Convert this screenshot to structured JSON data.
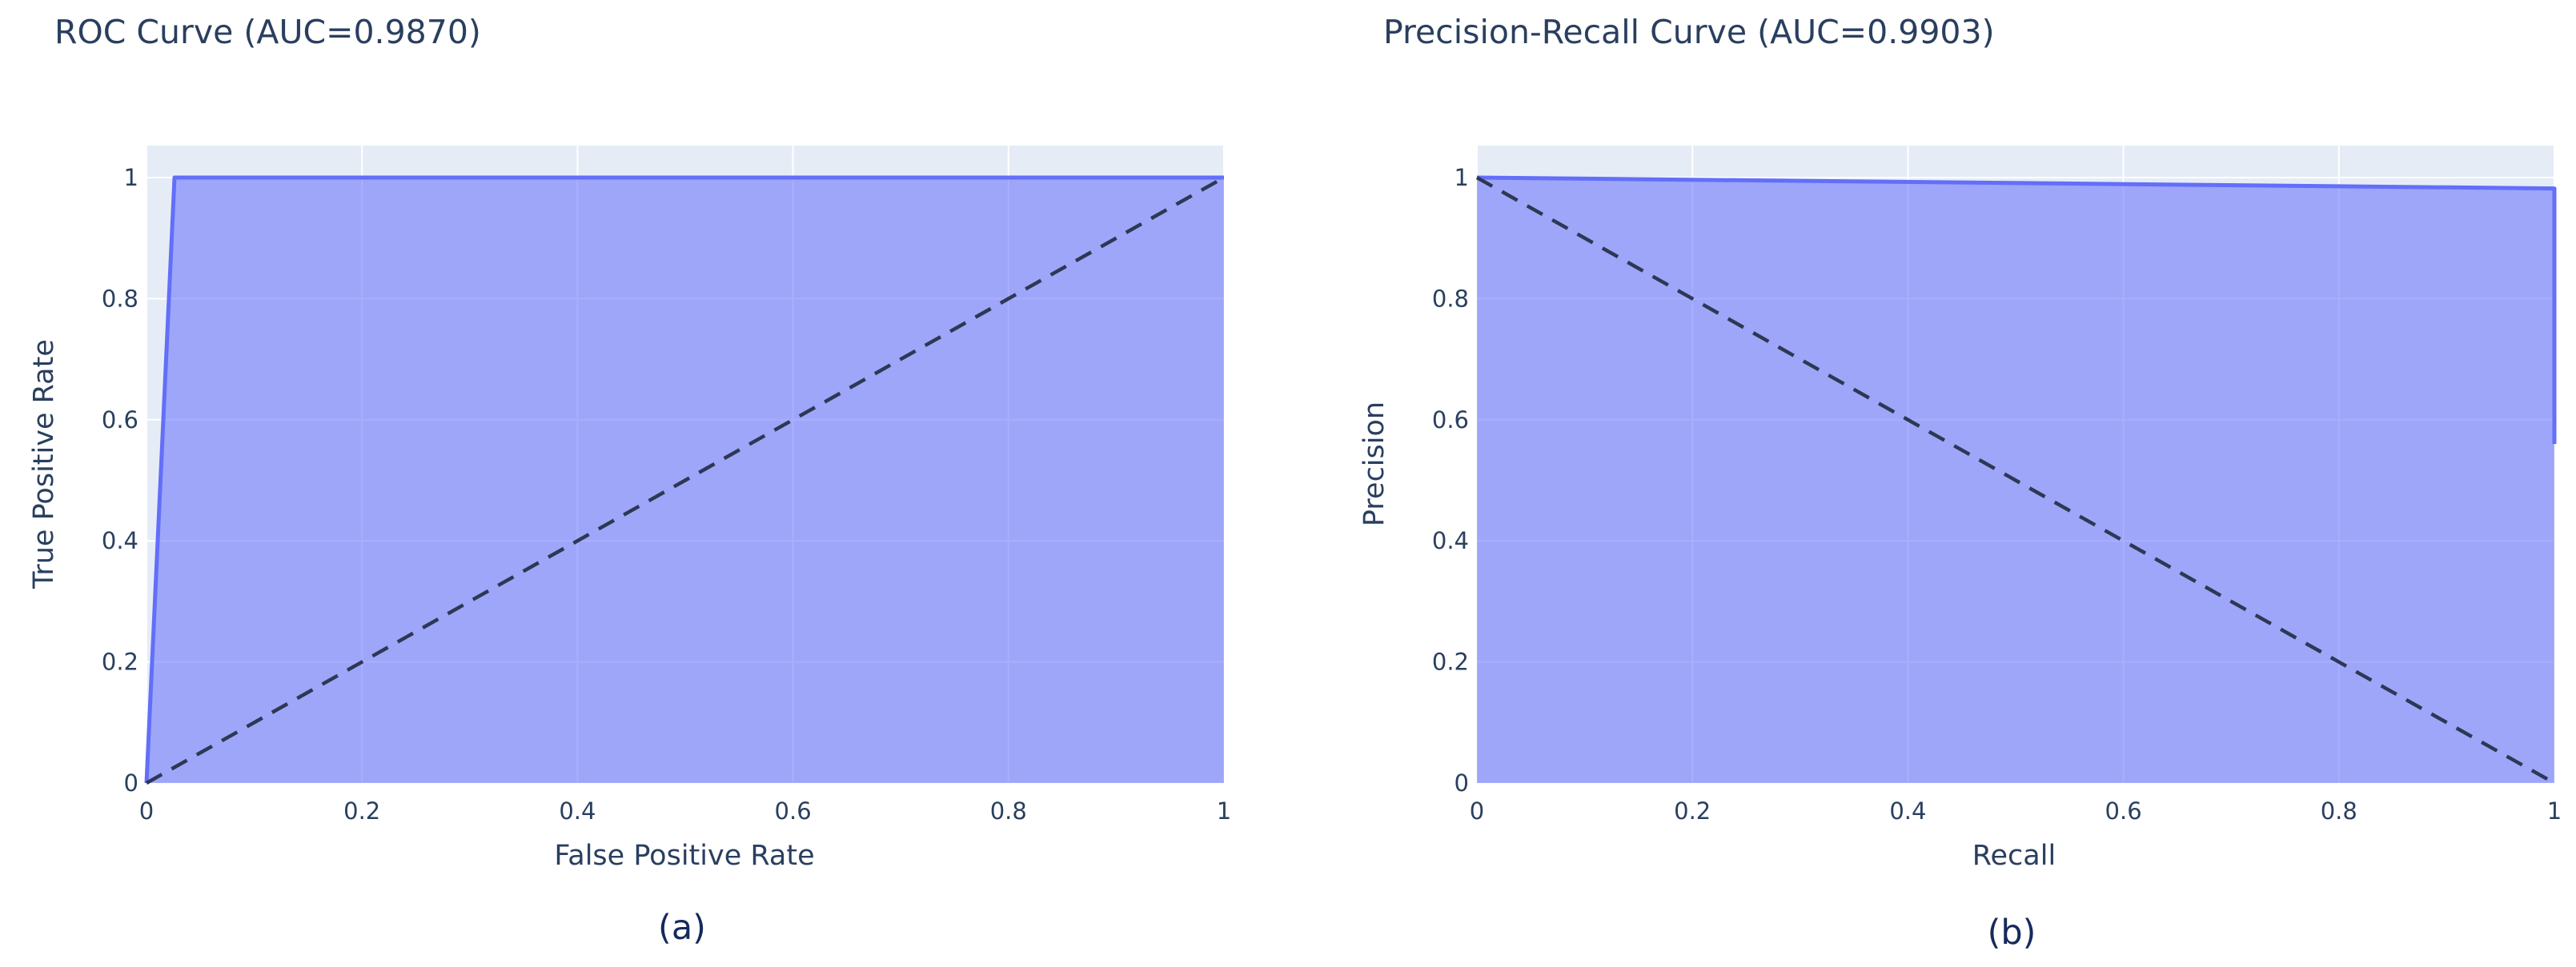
{
  "chart_data": [
    {
      "type": "area",
      "title": "ROC Curve (AUC=0.9870)",
      "xlabel": "False Positive Rate",
      "ylabel": "True Positive Rate",
      "panel_label": "(a)",
      "xlim": [
        0,
        1
      ],
      "ylim": [
        0,
        1
      ],
      "x_ticks": [
        "0",
        "0.2",
        "0.4",
        "0.6",
        "0.8",
        "1"
      ],
      "y_ticks": [
        "0",
        "0.2",
        "0.4",
        "0.6",
        "0.8",
        "1"
      ],
      "grid": true,
      "series": [
        {
          "x": [
            0,
            0.026,
            1
          ],
          "y": [
            0,
            1,
            1
          ],
          "fill": "tozeroy",
          "color": "#636efa"
        },
        {
          "x": [
            0,
            1
          ],
          "y": [
            0,
            1
          ],
          "style": "dash",
          "color": "#2e3754"
        }
      ]
    },
    {
      "type": "area",
      "title": "Precision-Recall Curve (AUC=0.9903)",
      "xlabel": "Recall",
      "ylabel": "Precision",
      "panel_label": "(b)",
      "xlim": [
        0,
        1
      ],
      "ylim": [
        0,
        1
      ],
      "x_ticks": [
        "0",
        "0.2",
        "0.4",
        "0.6",
        "0.8",
        "1"
      ],
      "y_ticks": [
        "0",
        "0.2",
        "0.4",
        "0.6",
        "0.8",
        "1"
      ],
      "grid": true,
      "series": [
        {
          "x": [
            0,
            1,
            1
          ],
          "y": [
            1,
            0.982,
            0.56
          ],
          "fill": "tozeroy",
          "color": "#636efa"
        },
        {
          "x": [
            0,
            1
          ],
          "y": [
            1,
            0
          ],
          "style": "dash",
          "color": "#2e3754"
        }
      ]
    }
  ]
}
